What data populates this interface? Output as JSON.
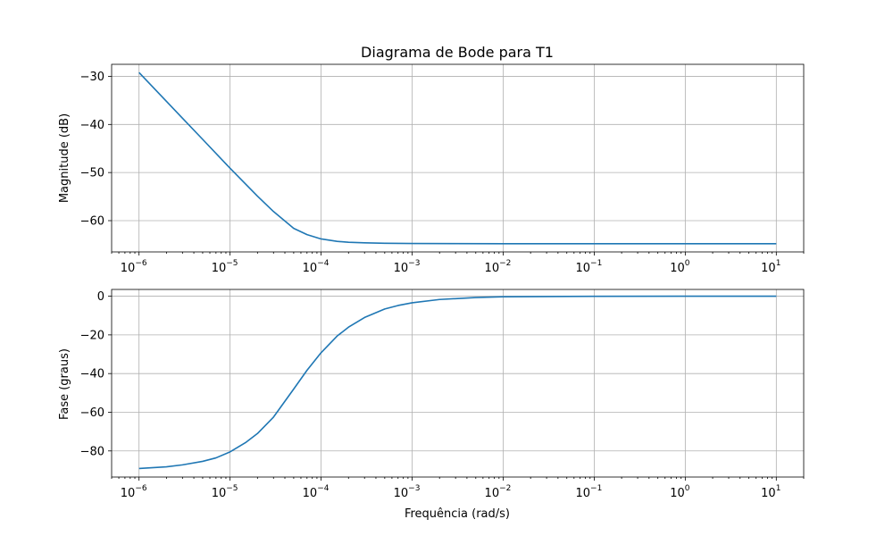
{
  "chart_data": [
    {
      "type": "line",
      "title": "Diagrama de Bode para T1",
      "xlabel": "",
      "ylabel": "Magnitude (dB)",
      "xscale": "log",
      "xlim": [
        5e-07,
        20
      ],
      "ylim": [
        -66.5,
        -27.5
      ],
      "grid": true,
      "xticks": [
        {
          "value": 1e-06,
          "base": "10",
          "exp": "−6"
        },
        {
          "value": 1e-05,
          "base": "10",
          "exp": "−5"
        },
        {
          "value": 0.0001,
          "base": "10",
          "exp": "−4"
        },
        {
          "value": 0.001,
          "base": "10",
          "exp": "−3"
        },
        {
          "value": 0.01,
          "base": "10",
          "exp": "−2"
        },
        {
          "value": 0.1,
          "base": "10",
          "exp": "−1"
        },
        {
          "value": 1,
          "base": "10",
          "exp": "0"
        },
        {
          "value": 10,
          "base": "10",
          "exp": "1"
        }
      ],
      "yticks": [
        {
          "value": -30,
          "label": "−30"
        },
        {
          "value": -40,
          "label": "−40"
        },
        {
          "value": -50,
          "label": "−50"
        },
        {
          "value": -60,
          "label": "−60"
        }
      ],
      "series": [
        {
          "color": "#1f77b4",
          "x": [
            1e-06,
            2e-06,
            3e-06,
            5e-06,
            1e-05,
            2e-05,
            3e-05,
            5e-05,
            7e-05,
            0.0001,
            0.00015,
            0.0002,
            0.0003,
            0.0005,
            0.001,
            0.01,
            0.1,
            1,
            10
          ],
          "y": [
            -29.2,
            -35.2,
            -38.7,
            -43.1,
            -49.1,
            -54.9,
            -58.1,
            -61.6,
            -62.9,
            -63.8,
            -64.3,
            -64.5,
            -64.6,
            -64.7,
            -64.75,
            -64.8,
            -64.8,
            -64.8,
            -64.8
          ]
        }
      ]
    },
    {
      "type": "line",
      "title": "",
      "xlabel": "Frequência (rad/s)",
      "ylabel": "Fase (graus)",
      "xscale": "log",
      "xlim": [
        5e-07,
        20
      ],
      "ylim": [
        -93.5,
        3.5
      ],
      "grid": true,
      "xticks": [
        {
          "value": 1e-06,
          "base": "10",
          "exp": "−6"
        },
        {
          "value": 1e-05,
          "base": "10",
          "exp": "−5"
        },
        {
          "value": 0.0001,
          "base": "10",
          "exp": "−4"
        },
        {
          "value": 0.001,
          "base": "10",
          "exp": "−3"
        },
        {
          "value": 0.01,
          "base": "10",
          "exp": "−2"
        },
        {
          "value": 0.1,
          "base": "10",
          "exp": "−1"
        },
        {
          "value": 1,
          "base": "10",
          "exp": "0"
        },
        {
          "value": 10,
          "base": "10",
          "exp": "1"
        }
      ],
      "yticks": [
        {
          "value": 0,
          "label": "0"
        },
        {
          "value": -20,
          "label": "−20"
        },
        {
          "value": -40,
          "label": "−40"
        },
        {
          "value": -60,
          "label": "−60"
        },
        {
          "value": -80,
          "label": "−80"
        }
      ],
      "series": [
        {
          "color": "#1f77b4",
          "x": [
            1e-06,
            2e-06,
            3e-06,
            5e-06,
            7e-06,
            1e-05,
            1.5e-05,
            2e-05,
            3e-05,
            5e-05,
            7e-05,
            0.0001,
            0.00015,
            0.0002,
            0.0003,
            0.0005,
            0.0007,
            0.001,
            0.002,
            0.005,
            0.01,
            0.1,
            1,
            10
          ],
          "y": [
            -89.1,
            -88.2,
            -87.2,
            -85.4,
            -83.6,
            -80.5,
            -75.5,
            -71.0,
            -62.5,
            -48.0,
            -38.3,
            -29.2,
            -20.6,
            -16.0,
            -11.0,
            -6.6,
            -4.8,
            -3.4,
            -1.7,
            -0.7,
            -0.3,
            -0.05,
            0,
            0
          ]
        }
      ]
    }
  ]
}
